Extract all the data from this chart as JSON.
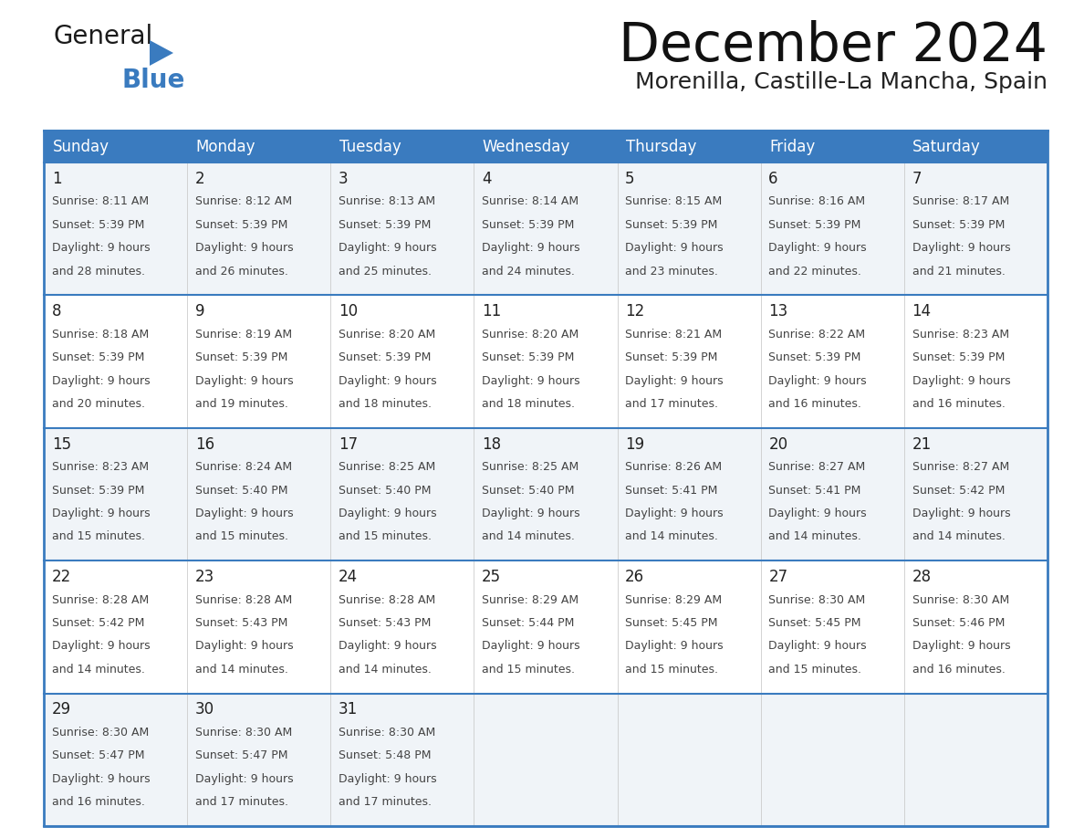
{
  "title": "December 2024",
  "subtitle": "Morenilla, Castille-La Mancha, Spain",
  "days_of_week": [
    "Sunday",
    "Monday",
    "Tuesday",
    "Wednesday",
    "Thursday",
    "Friday",
    "Saturday"
  ],
  "header_bg": "#3a7bbf",
  "header_text": "#ffffff",
  "row_bg_odd": "#f0f4f8",
  "row_bg_even": "#ffffff",
  "day_num_color": "#222222",
  "cell_text_color": "#444444",
  "calendar_data": [
    [
      {
        "day": 1,
        "sunrise": "8:11 AM",
        "sunset": "5:39 PM",
        "daylight": "9 hours and 28 minutes."
      },
      {
        "day": 2,
        "sunrise": "8:12 AM",
        "sunset": "5:39 PM",
        "daylight": "9 hours and 26 minutes."
      },
      {
        "day": 3,
        "sunrise": "8:13 AM",
        "sunset": "5:39 PM",
        "daylight": "9 hours and 25 minutes."
      },
      {
        "day": 4,
        "sunrise": "8:14 AM",
        "sunset": "5:39 PM",
        "daylight": "9 hours and 24 minutes."
      },
      {
        "day": 5,
        "sunrise": "8:15 AM",
        "sunset": "5:39 PM",
        "daylight": "9 hours and 23 minutes."
      },
      {
        "day": 6,
        "sunrise": "8:16 AM",
        "sunset": "5:39 PM",
        "daylight": "9 hours and 22 minutes."
      },
      {
        "day": 7,
        "sunrise": "8:17 AM",
        "sunset": "5:39 PM",
        "daylight": "9 hours and 21 minutes."
      }
    ],
    [
      {
        "day": 8,
        "sunrise": "8:18 AM",
        "sunset": "5:39 PM",
        "daylight": "9 hours and 20 minutes."
      },
      {
        "day": 9,
        "sunrise": "8:19 AM",
        "sunset": "5:39 PM",
        "daylight": "9 hours and 19 minutes."
      },
      {
        "day": 10,
        "sunrise": "8:20 AM",
        "sunset": "5:39 PM",
        "daylight": "9 hours and 18 minutes."
      },
      {
        "day": 11,
        "sunrise": "8:20 AM",
        "sunset": "5:39 PM",
        "daylight": "9 hours and 18 minutes."
      },
      {
        "day": 12,
        "sunrise": "8:21 AM",
        "sunset": "5:39 PM",
        "daylight": "9 hours and 17 minutes."
      },
      {
        "day": 13,
        "sunrise": "8:22 AM",
        "sunset": "5:39 PM",
        "daylight": "9 hours and 16 minutes."
      },
      {
        "day": 14,
        "sunrise": "8:23 AM",
        "sunset": "5:39 PM",
        "daylight": "9 hours and 16 minutes."
      }
    ],
    [
      {
        "day": 15,
        "sunrise": "8:23 AM",
        "sunset": "5:39 PM",
        "daylight": "9 hours and 15 minutes."
      },
      {
        "day": 16,
        "sunrise": "8:24 AM",
        "sunset": "5:40 PM",
        "daylight": "9 hours and 15 minutes."
      },
      {
        "day": 17,
        "sunrise": "8:25 AM",
        "sunset": "5:40 PM",
        "daylight": "9 hours and 15 minutes."
      },
      {
        "day": 18,
        "sunrise": "8:25 AM",
        "sunset": "5:40 PM",
        "daylight": "9 hours and 14 minutes."
      },
      {
        "day": 19,
        "sunrise": "8:26 AM",
        "sunset": "5:41 PM",
        "daylight": "9 hours and 14 minutes."
      },
      {
        "day": 20,
        "sunrise": "8:27 AM",
        "sunset": "5:41 PM",
        "daylight": "9 hours and 14 minutes."
      },
      {
        "day": 21,
        "sunrise": "8:27 AM",
        "sunset": "5:42 PM",
        "daylight": "9 hours and 14 minutes."
      }
    ],
    [
      {
        "day": 22,
        "sunrise": "8:28 AM",
        "sunset": "5:42 PM",
        "daylight": "9 hours and 14 minutes."
      },
      {
        "day": 23,
        "sunrise": "8:28 AM",
        "sunset": "5:43 PM",
        "daylight": "9 hours and 14 minutes."
      },
      {
        "day": 24,
        "sunrise": "8:28 AM",
        "sunset": "5:43 PM",
        "daylight": "9 hours and 14 minutes."
      },
      {
        "day": 25,
        "sunrise": "8:29 AM",
        "sunset": "5:44 PM",
        "daylight": "9 hours and 15 minutes."
      },
      {
        "day": 26,
        "sunrise": "8:29 AM",
        "sunset": "5:45 PM",
        "daylight": "9 hours and 15 minutes."
      },
      {
        "day": 27,
        "sunrise": "8:30 AM",
        "sunset": "5:45 PM",
        "daylight": "9 hours and 15 minutes."
      },
      {
        "day": 28,
        "sunrise": "8:30 AM",
        "sunset": "5:46 PM",
        "daylight": "9 hours and 16 minutes."
      }
    ],
    [
      {
        "day": 29,
        "sunrise": "8:30 AM",
        "sunset": "5:47 PM",
        "daylight": "9 hours and 16 minutes."
      },
      {
        "day": 30,
        "sunrise": "8:30 AM",
        "sunset": "5:47 PM",
        "daylight": "9 hours and 17 minutes."
      },
      {
        "day": 31,
        "sunrise": "8:30 AM",
        "sunset": "5:48 PM",
        "daylight": "9 hours and 17 minutes."
      },
      null,
      null,
      null,
      null
    ]
  ],
  "logo_general": "General",
  "logo_blue": "Blue",
  "title_fontsize": 42,
  "subtitle_fontsize": 18,
  "header_fontsize": 12,
  "day_num_fontsize": 12,
  "cell_fontsize": 9
}
